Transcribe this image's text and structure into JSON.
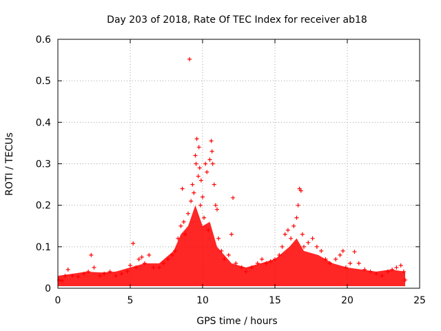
{
  "chart_data": {
    "type": "scatter",
    "title": "Day 203 of 2018, Rate Of TEC Index for receiver ab18",
    "xlabel": "GPS time / hours",
    "ylabel": "ROTI / TECUs",
    "xlim": [
      0,
      25
    ],
    "ylim": [
      0,
      0.6
    ],
    "xticks": [
      0,
      5,
      10,
      15,
      20,
      25
    ],
    "yticks": [
      0,
      0.1,
      0.2,
      0.3,
      0.4,
      0.5,
      0.6
    ],
    "xtick_labels": [
      "0",
      "5",
      "10",
      "15",
      "20",
      "25"
    ],
    "ytick_labels": [
      "0",
      "0.1",
      "0.2",
      "0.3",
      "0.4",
      "0.5",
      "0.6"
    ],
    "grid": true,
    "marker": "+",
    "color": "#ff0000",
    "series": [
      {
        "name": "ROTI",
        "points": [
          [
            0.1,
            0.02
          ],
          [
            0.3,
            0.018
          ],
          [
            0.5,
            0.03
          ],
          [
            0.7,
            0.045
          ],
          [
            1.0,
            0.03
          ],
          [
            1.4,
            0.028
          ],
          [
            1.8,
            0.035
          ],
          [
            2.1,
            0.04
          ],
          [
            2.3,
            0.08
          ],
          [
            2.5,
            0.05
          ],
          [
            2.9,
            0.03
          ],
          [
            3.2,
            0.035
          ],
          [
            3.6,
            0.04
          ],
          [
            4.0,
            0.03
          ],
          [
            4.4,
            0.035
          ],
          [
            4.8,
            0.04
          ],
          [
            5.0,
            0.055
          ],
          [
            5.2,
            0.108
          ],
          [
            5.4,
            0.05
          ],
          [
            5.6,
            0.07
          ],
          [
            5.8,
            0.075
          ],
          [
            6.0,
            0.06
          ],
          [
            6.3,
            0.08
          ],
          [
            6.6,
            0.05
          ],
          [
            7.0,
            0.05
          ],
          [
            7.3,
            0.06
          ],
          [
            7.6,
            0.07
          ],
          [
            7.9,
            0.08
          ],
          [
            8.1,
            0.09
          ],
          [
            8.3,
            0.12
          ],
          [
            8.5,
            0.15
          ],
          [
            8.6,
            0.24
          ],
          [
            8.7,
            0.16
          ],
          [
            8.8,
            0.13
          ],
          [
            9.0,
            0.18
          ],
          [
            9.1,
            0.552
          ],
          [
            9.2,
            0.21
          ],
          [
            9.3,
            0.25
          ],
          [
            9.4,
            0.23
          ],
          [
            9.5,
            0.32
          ],
          [
            9.55,
            0.3
          ],
          [
            9.6,
            0.36
          ],
          [
            9.7,
            0.27
          ],
          [
            9.75,
            0.34
          ],
          [
            9.8,
            0.29
          ],
          [
            9.85,
            0.2
          ],
          [
            9.9,
            0.26
          ],
          [
            10.0,
            0.22
          ],
          [
            10.1,
            0.17
          ],
          [
            10.2,
            0.3
          ],
          [
            10.3,
            0.28
          ],
          [
            10.4,
            0.14
          ],
          [
            10.5,
            0.31
          ],
          [
            10.6,
            0.355
          ],
          [
            10.65,
            0.33
          ],
          [
            10.7,
            0.3
          ],
          [
            10.8,
            0.25
          ],
          [
            10.9,
            0.2
          ],
          [
            11.0,
            0.19
          ],
          [
            11.1,
            0.12
          ],
          [
            11.3,
            0.09
          ],
          [
            11.5,
            0.07
          ],
          [
            11.8,
            0.08
          ],
          [
            12.0,
            0.13
          ],
          [
            12.1,
            0.218
          ],
          [
            12.3,
            0.06
          ],
          [
            12.7,
            0.05
          ],
          [
            13.0,
            0.04
          ],
          [
            13.4,
            0.05
          ],
          [
            13.8,
            0.06
          ],
          [
            14.1,
            0.07
          ],
          [
            14.4,
            0.06
          ],
          [
            14.7,
            0.065
          ],
          [
            15.0,
            0.07
          ],
          [
            15.3,
            0.08
          ],
          [
            15.5,
            0.1
          ],
          [
            15.7,
            0.13
          ],
          [
            15.9,
            0.14
          ],
          [
            16.1,
            0.12
          ],
          [
            16.3,
            0.15
          ],
          [
            16.5,
            0.17
          ],
          [
            16.6,
            0.2
          ],
          [
            16.7,
            0.24
          ],
          [
            16.8,
            0.235
          ],
          [
            16.9,
            0.13
          ],
          [
            17.0,
            0.1
          ],
          [
            17.3,
            0.11
          ],
          [
            17.6,
            0.12
          ],
          [
            17.9,
            0.1
          ],
          [
            18.2,
            0.09
          ],
          [
            18.5,
            0.07
          ],
          [
            18.8,
            0.06
          ],
          [
            19.2,
            0.07
          ],
          [
            19.5,
            0.08
          ],
          [
            19.7,
            0.09
          ],
          [
            19.9,
            0.05
          ],
          [
            20.2,
            0.06
          ],
          [
            20.5,
            0.088
          ],
          [
            20.8,
            0.06
          ],
          [
            21.2,
            0.045
          ],
          [
            21.6,
            0.04
          ],
          [
            22.0,
            0.035
          ],
          [
            22.4,
            0.03
          ],
          [
            22.8,
            0.04
          ],
          [
            23.1,
            0.045
          ],
          [
            23.4,
            0.05
          ],
          [
            23.7,
            0.055
          ],
          [
            23.9,
            0.04
          ],
          [
            24.0,
            0.02
          ]
        ]
      }
    ]
  }
}
